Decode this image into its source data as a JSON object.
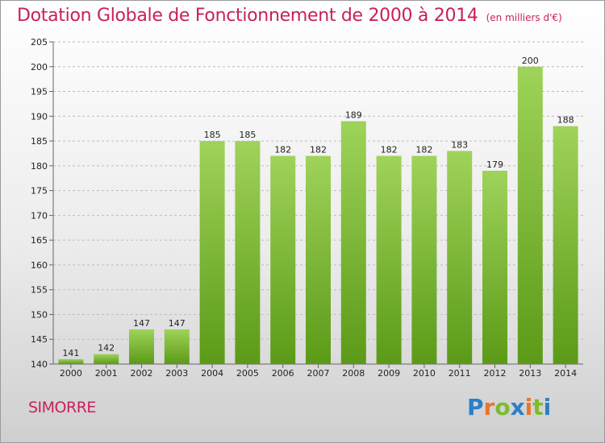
{
  "title": "Dotation Globale de Fonctionnement de 2000 à 2014",
  "unit_label": "(en milliers d'€)",
  "place": "SIMORRE",
  "brand": {
    "letters": [
      {
        "ch": "P",
        "color": "#2a7fc9"
      },
      {
        "ch": "r",
        "color": "#e9752b"
      },
      {
        "ch": "o",
        "color": "#7bbd2b"
      },
      {
        "ch": "x",
        "color": "#2a7fc9"
      },
      {
        "ch": "i",
        "color": "#e9752b"
      },
      {
        "ch": "t",
        "color": "#7bbd2b"
      },
      {
        "ch": "i",
        "color": "#2a7fc9"
      }
    ]
  },
  "colors": {
    "title": "#c8205e",
    "bar_light": "#9fd35a",
    "bar_dark": "#5b9a17",
    "grid": "#bdbdbd"
  },
  "chart_data": {
    "type": "bar",
    "title": "Dotation Globale de Fonctionnement de 2000 à 2014",
    "unit": "(en milliers d'€)",
    "categories": [
      "2000",
      "2001",
      "2002",
      "2003",
      "2004",
      "2005",
      "2006",
      "2007",
      "2008",
      "2009",
      "2010",
      "2011",
      "2012",
      "2013",
      "2014"
    ],
    "values": [
      141,
      142,
      147,
      147,
      185,
      185,
      182,
      182,
      189,
      182,
      182,
      183,
      179,
      200,
      188
    ],
    "ylim": [
      140,
      205
    ],
    "yticks": [
      140,
      145,
      150,
      155,
      160,
      165,
      170,
      175,
      180,
      185,
      190,
      195,
      200,
      205
    ],
    "grid": "horizontal, dashed",
    "legend": "none"
  }
}
